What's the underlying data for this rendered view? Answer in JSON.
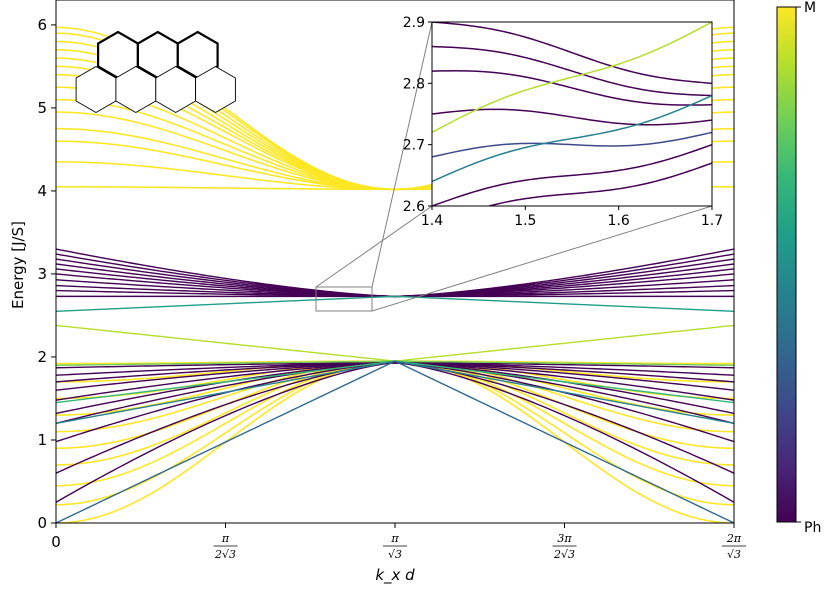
{
  "chart_data": {
    "type": "line",
    "title": "",
    "xlabel": "k_x d",
    "ylabel": "Energy [J/S]",
    "ylim": [
      0,
      6.3
    ],
    "x_ticks": [
      {
        "label": "0"
      },
      {
        "num": "π",
        "den": "2√3"
      },
      {
        "num": "π",
        "den": "√3"
      },
      {
        "num": "3π",
        "den": "2√3"
      },
      {
        "num": "2π",
        "den": "√3"
      }
    ],
    "y_ticks": [
      "0",
      "1",
      "2",
      "3",
      "4",
      "5",
      "6"
    ],
    "grid": false,
    "colorbar": {
      "colormap": "viridis",
      "top_label": "M",
      "bottom_label": "Ph",
      "colors": [
        "#440154",
        "#482878",
        "#3e4989",
        "#31688e",
        "#26828e",
        "#1f9e89",
        "#35b779",
        "#6ece58",
        "#b5de2b",
        "#fde725"
      ]
    },
    "inset": {
      "xlim": [
        1.4,
        1.7
      ],
      "ylim": [
        2.6,
        2.9
      ],
      "x_ticks": [
        "1.4",
        "1.5",
        "1.6",
        "1.7"
      ],
      "y_ticks": [
        "2.6",
        "2.7",
        "2.8",
        "2.9"
      ]
    },
    "series_groups": {
      "photonic_upper": {
        "color": "#fde725",
        "edge_energies": [
          4.05,
          4.35,
          4.6,
          4.75,
          4.95,
          5.1,
          5.25,
          5.4,
          5.5,
          5.6,
          5.7,
          5.8,
          5.9,
          5.97
        ],
        "center_energy": 4.02
      },
      "photonic_lower": {
        "color": "#fde725",
        "edge_energies": [
          0.0,
          0.22,
          0.45,
          0.7,
          0.9,
          1.1,
          1.3,
          1.5,
          1.7,
          1.92
        ],
        "center_energy": 1.95
      },
      "magnonic_upper": {
        "color": "#440154",
        "edge_energies": [
          2.73,
          2.8,
          2.86,
          2.93,
          3.0,
          3.06,
          3.12,
          3.18,
          3.24,
          3.3
        ],
        "center_energy": 2.73
      },
      "magnonic_lower": {
        "color": "#440154",
        "edge_energies": [
          0.25,
          0.6,
          0.98,
          1.2,
          1.32,
          1.48,
          1.6,
          1.7,
          1.78,
          1.87
        ],
        "center_energy": 1.93
      }
    }
  }
}
